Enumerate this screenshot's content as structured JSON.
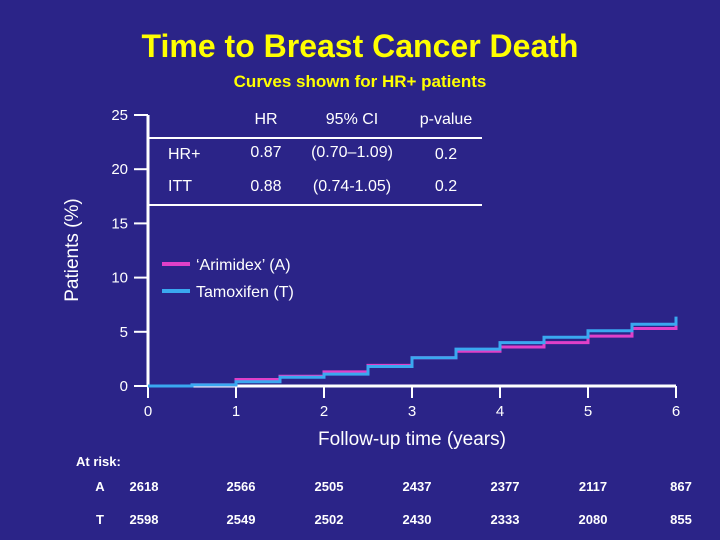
{
  "colors": {
    "background": "#2b2488",
    "title": "#ffff00",
    "arimidex": "#e040c8",
    "tamoxifen": "#3aa8f0",
    "text": "#ffffff"
  },
  "chart_data": {
    "type": "line",
    "title": "Time to Breast Cancer Death",
    "subtitle": "Curves shown for HR+ patients",
    "xlabel": "Follow-up time (years)",
    "ylabel": "Patients (%)",
    "xlim": [
      0,
      6
    ],
    "ylim": [
      0,
      25
    ],
    "xticks": [
      "0",
      "1",
      "2",
      "3",
      "4",
      "5",
      "6"
    ],
    "yticks": [
      "0",
      "5",
      "10",
      "15",
      "20",
      "25"
    ],
    "grid": false,
    "legend_placement": "center-left",
    "series": [
      {
        "name": "‘Arimidex’ (A)",
        "color": "#e040c8",
        "x": [
          0,
          0.5,
          1.0,
          1.5,
          2.0,
          2.5,
          3.0,
          3.5,
          4.0,
          4.5,
          5.0,
          5.5,
          6.0
        ],
        "y": [
          0,
          0.1,
          0.6,
          0.9,
          1.3,
          1.9,
          2.6,
          3.2,
          3.6,
          4.0,
          4.6,
          5.3,
          5.9
        ]
      },
      {
        "name": "Tamoxifen (T)",
        "color": "#3aa8f0",
        "x": [
          0,
          0.5,
          1.0,
          1.5,
          2.0,
          2.5,
          3.0,
          3.5,
          4.0,
          4.5,
          5.0,
          5.5,
          6.0
        ],
        "y": [
          0,
          0.1,
          0.4,
          0.8,
          1.1,
          1.8,
          2.6,
          3.4,
          4.0,
          4.5,
          5.1,
          5.7,
          6.4
        ]
      }
    ],
    "hr_table": {
      "headers": [
        "",
        "HR",
        "95% CI",
        "p-value"
      ],
      "rows": [
        [
          "HR+",
          "0.87",
          "(0.70–1.09)",
          "0.2"
        ],
        [
          "ITT",
          "0.88",
          "(0.74-1.05)",
          "0.2"
        ]
      ]
    },
    "at_risk": {
      "label": "At risk:",
      "rows": [
        {
          "arm": "A",
          "values": [
            "2618",
            "2566",
            "2505",
            "2437",
            "2377",
            "2117",
            "867"
          ]
        },
        {
          "arm": "T",
          "values": [
            "2598",
            "2549",
            "2502",
            "2430",
            "2333",
            "2080",
            "855"
          ]
        }
      ]
    }
  }
}
